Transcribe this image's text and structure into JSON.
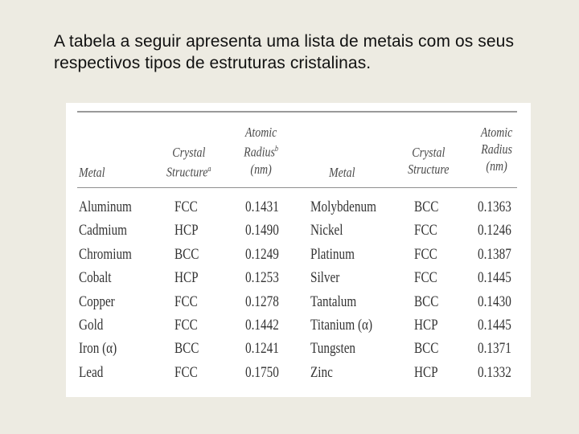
{
  "intro_text": "A tabela a seguir apresenta uma lista de metais com os seus respectivos tipos de estruturas cristalinas.",
  "table": {
    "headers": {
      "metal": "Metal",
      "crystal_structure_1": "Crystal",
      "crystal_structure_2": "Structure",
      "crystal_structure_sup": "a",
      "atomic_1": "Atomic",
      "atomic_2": "Radius",
      "atomic_sup": "b",
      "atomic_3": "(nm)",
      "metal_r": "Metal",
      "crystal_structure_r1": "Crystal",
      "crystal_structure_r2": "Structure",
      "atomic_r1": "Atomic",
      "atomic_r2": "Radius",
      "atomic_r3": "(nm)"
    },
    "rows": [
      {
        "metal": "Aluminum",
        "structure": "FCC",
        "radius": "0.1431",
        "metal2": "Molybdenum",
        "structure2": "BCC",
        "radius2": "0.1363"
      },
      {
        "metal": "Cadmium",
        "structure": "HCP",
        "radius": "0.1490",
        "metal2": "Nickel",
        "structure2": "FCC",
        "radius2": "0.1246"
      },
      {
        "metal": "Chromium",
        "structure": "BCC",
        "radius": "0.1249",
        "metal2": "Platinum",
        "structure2": "FCC",
        "radius2": "0.1387"
      },
      {
        "metal": "Cobalt",
        "structure": "HCP",
        "radius": "0.1253",
        "metal2": "Silver",
        "structure2": "FCC",
        "radius2": "0.1445"
      },
      {
        "metal": "Copper",
        "structure": "FCC",
        "radius": "0.1278",
        "metal2": "Tantalum",
        "structure2": "BCC",
        "radius2": "0.1430"
      },
      {
        "metal": "Gold",
        "structure": "FCC",
        "radius": "0.1442",
        "metal2": "Titanium (α)",
        "structure2": "HCP",
        "radius2": "0.1445"
      },
      {
        "metal": "Iron (α)",
        "structure": "BCC",
        "radius": "0.1241",
        "metal2": "Tungsten",
        "structure2": "BCC",
        "radius2": "0.1371"
      },
      {
        "metal": "Lead",
        "structure": "FCC",
        "radius": "0.1750",
        "metal2": "Zinc",
        "structure2": "HCP",
        "radius2": "0.1332"
      }
    ]
  }
}
